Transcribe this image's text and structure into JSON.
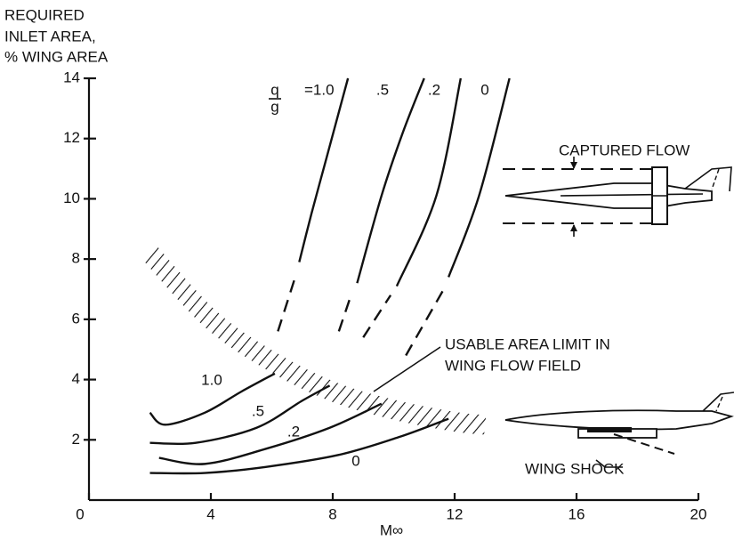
{
  "chart_data": {
    "type": "line",
    "y_axis_label": [
      "REQUIRED",
      "INLET AREA,",
      "% WING AREA"
    ],
    "x_axis_label": "M∞",
    "color": "#111111",
    "xlim": [
      0,
      20
    ],
    "ylim": [
      0,
      14
    ],
    "xticks": [
      0,
      4,
      8,
      12,
      16,
      20
    ],
    "yticks": [
      2,
      4,
      6,
      8,
      10,
      12,
      14
    ],
    "q_over_g": {
      "numerator": "q",
      "denominator": "g"
    },
    "series": [
      {
        "label": "=1.0",
        "x": [
          6.9,
          7.3,
          7.7,
          8.1,
          8.5
        ],
        "values": [
          7.9,
          9.5,
          11,
          12.5,
          14
        ],
        "dash_x": [
          6.2,
          6.8
        ],
        "dash_values": [
          5.6,
          7.5
        ]
      },
      {
        "label": ".5",
        "x": [
          8.8,
          9.6,
          10.3,
          11.0
        ],
        "values": [
          7.2,
          10.1,
          12.2,
          14
        ],
        "dash_x": [
          8.2,
          8.6
        ],
        "dash_values": [
          5.6,
          6.8
        ]
      },
      {
        "label": ".2",
        "x": [
          10.1,
          11.4,
          12.2
        ],
        "values": [
          7.1,
          10.1,
          14
        ],
        "dash_x": [
          9.0,
          9.9
        ],
        "dash_values": [
          5.4,
          6.8
        ]
      },
      {
        "label": "0",
        "x": [
          11.8,
          12.8,
          13.8
        ],
        "values": [
          7.4,
          10.1,
          14
        ],
        "dash_x": [
          10.4,
          11.7
        ],
        "dash_values": [
          4.8,
          7.1
        ]
      },
      {
        "label": "1.0",
        "x": [
          2.0,
          2.5,
          3.8,
          5.0,
          6.1
        ],
        "values": [
          2.9,
          2.5,
          2.9,
          3.6,
          4.2
        ]
      },
      {
        "label": ".5",
        "x": [
          2.0,
          3.5,
          5.5,
          7.0,
          7.9
        ],
        "values": [
          1.9,
          1.9,
          2.4,
          3.3,
          3.8
        ]
      },
      {
        "label": ".2",
        "x": [
          2.3,
          3.8,
          5.8,
          7.9,
          9.6
        ],
        "values": [
          1.4,
          1.2,
          1.7,
          2.4,
          3.2
        ]
      },
      {
        "label": "0",
        "x": [
          2.0,
          3.8,
          5.8,
          8.2,
          10.2,
          11.8
        ],
        "values": [
          0.9,
          0.9,
          1.1,
          1.5,
          2.1,
          2.7
        ]
      }
    ],
    "limit": {
      "label": [
        "USABLE AREA LIMIT IN",
        "WING FLOW FIELD"
      ],
      "x": [
        2,
        4,
        6,
        8,
        10,
        12,
        13
      ],
      "values": [
        8.2,
        6.0,
        4.6,
        3.6,
        3.0,
        2.6,
        2.5
      ]
    },
    "captured_flow": "CAPTURED FLOW",
    "wing_shock": "WING SHOCK"
  }
}
